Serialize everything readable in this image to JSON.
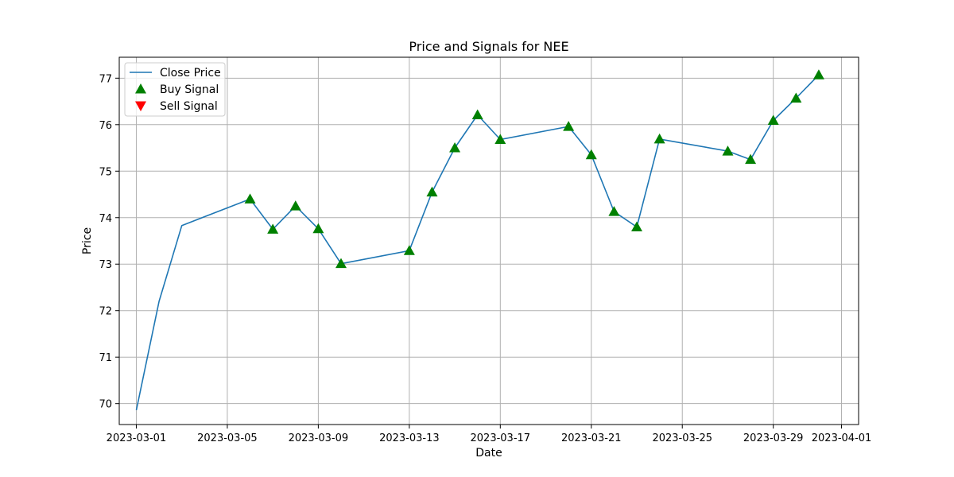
{
  "chart_data": {
    "type": "line",
    "title": "Price and Signals for NEE",
    "xlabel": "Date",
    "ylabel": "Price",
    "ylim": [
      69.55,
      77.45
    ],
    "xlim": [
      "2023-02-28T06:00",
      "2023-04-01T18:00"
    ],
    "grid": true,
    "legend_position": "top-left",
    "x_ticks": [
      "2023-03-01",
      "2023-03-05",
      "2023-03-09",
      "2023-03-13",
      "2023-03-17",
      "2023-03-21",
      "2023-03-25",
      "2023-03-29",
      "2023-04-01"
    ],
    "y_ticks": [
      70,
      71,
      72,
      73,
      74,
      75,
      76,
      77
    ],
    "colors": {
      "close": "#1f77b4",
      "buy": "#008000",
      "sell": "#ff0000",
      "grid": "#b0b0b0"
    },
    "series": [
      {
        "name": "Close Price",
        "kind": "line",
        "points": [
          {
            "x": "2023-03-01",
            "y": 69.86
          },
          {
            "x": "2023-03-02",
            "y": 72.2
          },
          {
            "x": "2023-03-03",
            "y": 73.83
          },
          {
            "x": "2023-03-06",
            "y": 74.4
          },
          {
            "x": "2023-03-07",
            "y": 73.75
          },
          {
            "x": "2023-03-08",
            "y": 74.25
          },
          {
            "x": "2023-03-09",
            "y": 73.76
          },
          {
            "x": "2023-03-10",
            "y": 73.01
          },
          {
            "x": "2023-03-13",
            "y": 73.29
          },
          {
            "x": "2023-03-14",
            "y": 74.55
          },
          {
            "x": "2023-03-15",
            "y": 75.5
          },
          {
            "x": "2023-03-16",
            "y": 76.21
          },
          {
            "x": "2023-03-17",
            "y": 75.68
          },
          {
            "x": "2023-03-20",
            "y": 75.96
          },
          {
            "x": "2023-03-21",
            "y": 75.35
          },
          {
            "x": "2023-03-22",
            "y": 74.13
          },
          {
            "x": "2023-03-23",
            "y": 73.8
          },
          {
            "x": "2023-03-24",
            "y": 75.69
          },
          {
            "x": "2023-03-27",
            "y": 75.43
          },
          {
            "x": "2023-03-28",
            "y": 75.25
          },
          {
            "x": "2023-03-29",
            "y": 76.09
          },
          {
            "x": "2023-03-30",
            "y": 76.57
          },
          {
            "x": "2023-03-31",
            "y": 77.07
          }
        ]
      },
      {
        "name": "Buy Signal",
        "kind": "marker-up",
        "points": [
          {
            "x": "2023-03-06",
            "y": 74.4
          },
          {
            "x": "2023-03-07",
            "y": 73.75
          },
          {
            "x": "2023-03-08",
            "y": 74.25
          },
          {
            "x": "2023-03-09",
            "y": 73.76
          },
          {
            "x": "2023-03-10",
            "y": 73.01
          },
          {
            "x": "2023-03-13",
            "y": 73.29
          },
          {
            "x": "2023-03-14",
            "y": 74.55
          },
          {
            "x": "2023-03-15",
            "y": 75.5
          },
          {
            "x": "2023-03-16",
            "y": 76.21
          },
          {
            "x": "2023-03-17",
            "y": 75.68
          },
          {
            "x": "2023-03-20",
            "y": 75.96
          },
          {
            "x": "2023-03-21",
            "y": 75.35
          },
          {
            "x": "2023-03-22",
            "y": 74.13
          },
          {
            "x": "2023-03-23",
            "y": 73.8
          },
          {
            "x": "2023-03-24",
            "y": 75.69
          },
          {
            "x": "2023-03-27",
            "y": 75.43
          },
          {
            "x": "2023-03-28",
            "y": 75.25
          },
          {
            "x": "2023-03-29",
            "y": 76.09
          },
          {
            "x": "2023-03-30",
            "y": 76.57
          },
          {
            "x": "2023-03-31",
            "y": 77.07
          }
        ]
      },
      {
        "name": "Sell Signal",
        "kind": "marker-down",
        "points": []
      }
    ]
  }
}
